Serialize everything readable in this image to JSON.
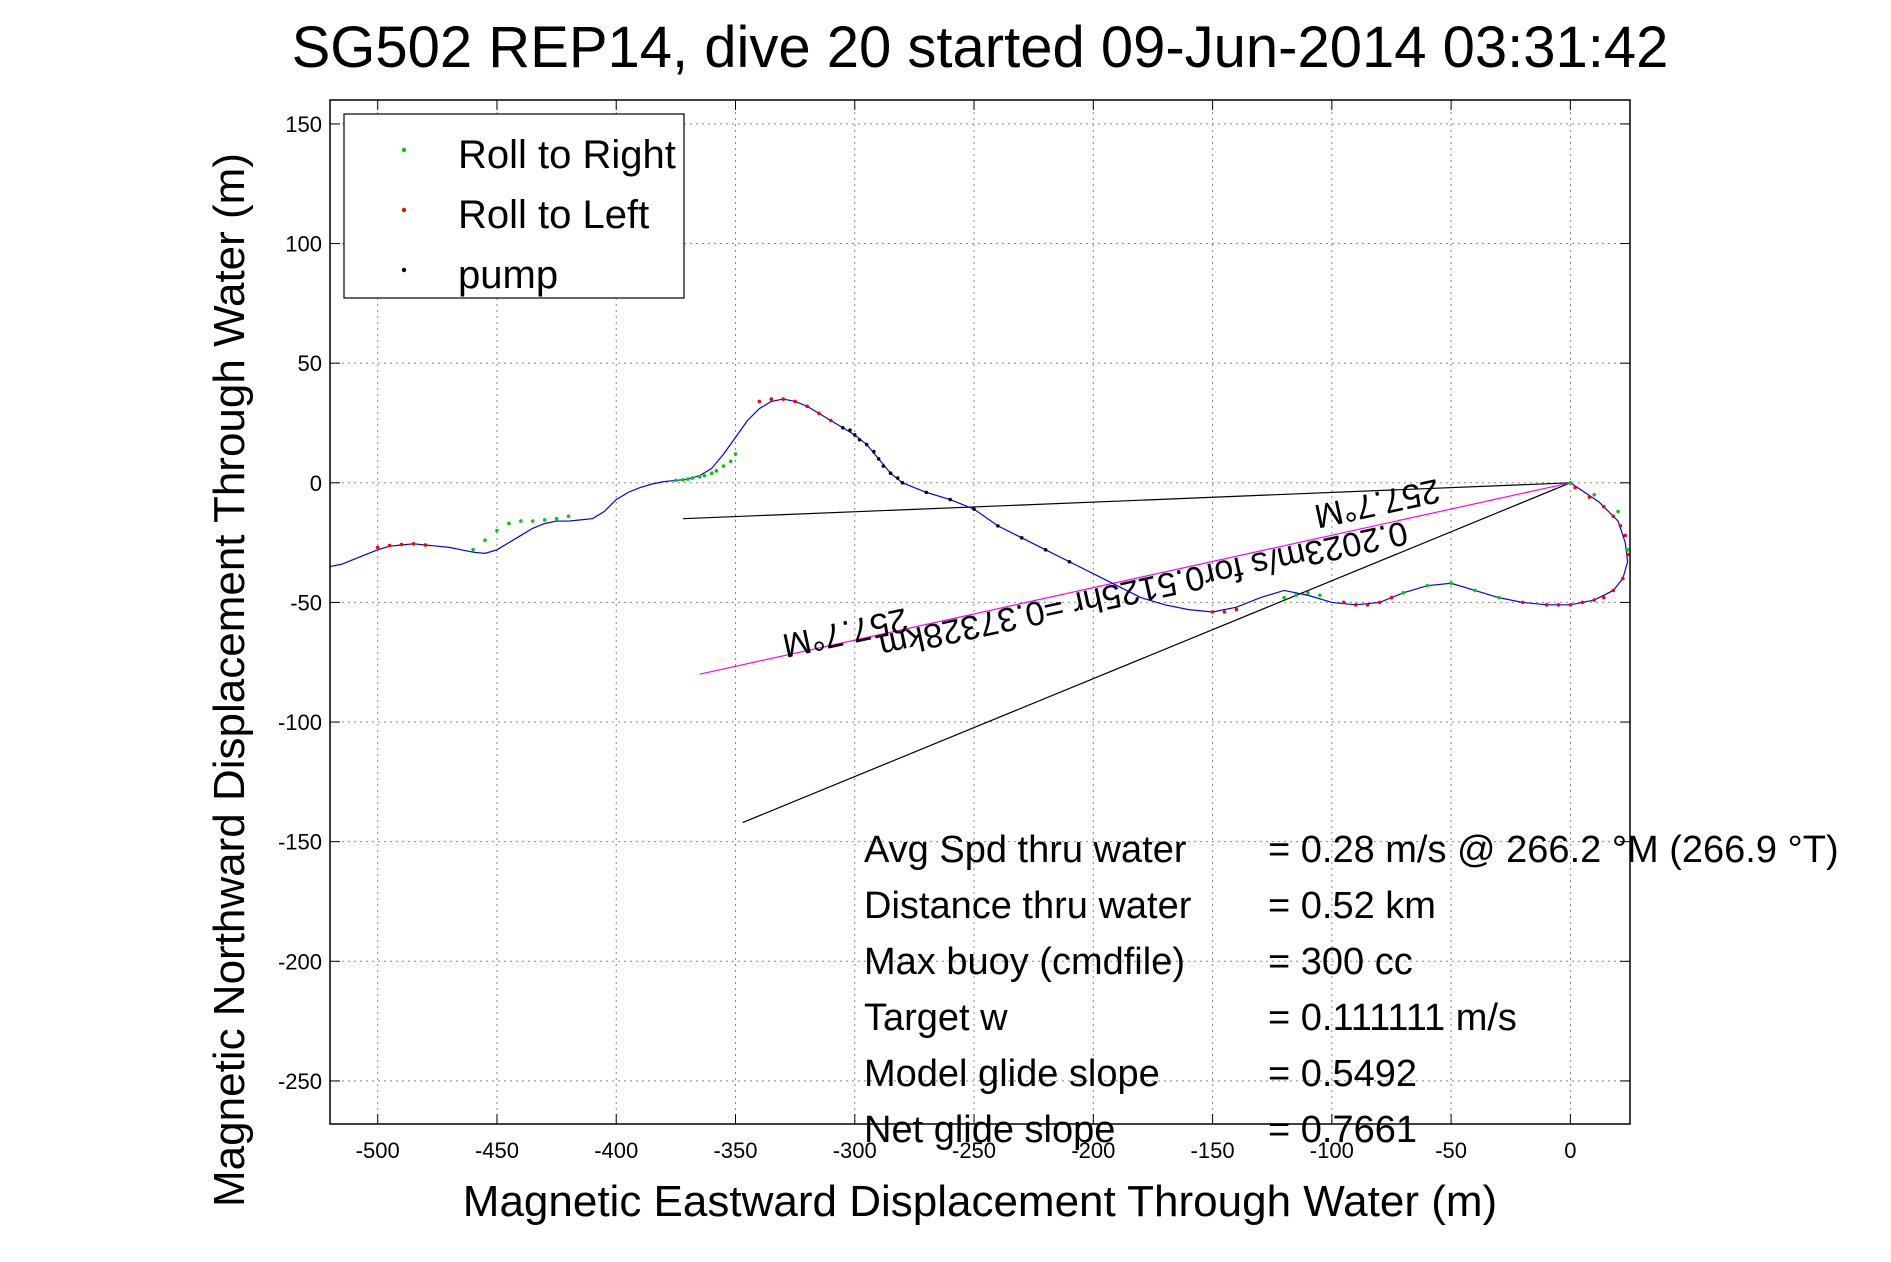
{
  "chart_data": {
    "type": "line",
    "title": "SG502 REP14, dive 20 started 09-Jun-2014 03:31:42",
    "xlabel": "Magnetic Eastward Displacement Through Water (m)",
    "ylabel": "Magnetic Northward Displacement Through Water (m)",
    "xlim": [
      -520,
      25
    ],
    "ylim": [
      -268,
      160
    ],
    "xticks": [
      -500,
      -450,
      -400,
      -350,
      -300,
      -250,
      -200,
      -150,
      -100,
      -50,
      0
    ],
    "yticks": [
      -250,
      -200,
      -150,
      -100,
      -50,
      0,
      50,
      100,
      150
    ],
    "grid": true,
    "legend_position": "top-left",
    "legend": [
      {
        "name": "Roll to Right",
        "color": "#00cc00"
      },
      {
        "name": "Roll to Left",
        "color": "#ff0000"
      },
      {
        "name": "pump",
        "color": "#000000"
      }
    ],
    "track": {
      "color": "#0000ff",
      "x": [
        0,
        12,
        20,
        23,
        24,
        22,
        18,
        10,
        0,
        -10,
        -20,
        -30,
        -40,
        -50,
        -60,
        -70,
        -80,
        -90,
        -100,
        -110,
        -120,
        -130,
        -140,
        -150,
        -160,
        -170,
        -180,
        -190,
        -200,
        -210,
        -220,
        -230,
        -240,
        -250,
        -260,
        -270,
        -280,
        -285,
        -290,
        -295,
        -300,
        -305,
        -310,
        -315,
        -320,
        -325,
        -330,
        -335,
        -340,
        -345,
        -350,
        -355,
        -360,
        -365,
        -370,
        -375,
        -380,
        -385,
        -390,
        -395,
        -400,
        -405,
        -410,
        -415,
        -420,
        -425,
        -430,
        -435,
        -440,
        -445,
        -450,
        -455,
        -460,
        -465,
        -470,
        -475,
        -480,
        -485,
        -490,
        -495,
        -500,
        -505,
        -510,
        -515,
        -520
      ],
      "y": [
        0,
        -8,
        -16,
        -25,
        -33,
        -40,
        -45,
        -49,
        -51,
        -51,
        -50,
        -48,
        -45,
        -42,
        -43,
        -46,
        -50,
        -51,
        -50,
        -47,
        -45,
        -48,
        -52,
        -54,
        -53,
        -51,
        -48,
        -43,
        -38,
        -33,
        -28,
        -23,
        -18,
        -11,
        -7,
        -4,
        0,
        4,
        10,
        16,
        20,
        23,
        26,
        29,
        32,
        34,
        35,
        34,
        31,
        26,
        19,
        12,
        6,
        3,
        1.5,
        1,
        0.5,
        -0.5,
        -2,
        -4,
        -7,
        -12,
        -15,
        -15.5,
        -16,
        -16,
        -17,
        -19,
        -22,
        -25,
        -28,
        -29.5,
        -29,
        -28,
        -27,
        -26.5,
        -26,
        -25.5,
        -26,
        -26.5,
        -28,
        -30,
        -32,
        -34,
        -35
      ]
    },
    "roll_right_x": [
      0,
      10,
      20,
      24,
      -30,
      -40,
      -50,
      -60,
      -70,
      -105,
      -110,
      -115,
      -120,
      -350,
      -352,
      -355,
      -358,
      -360,
      -363,
      -365,
      -368,
      -370,
      -372,
      -375,
      -420,
      -425,
      -430,
      -435,
      -440,
      -445,
      -450,
      -455,
      -460
    ],
    "roll_right_y": [
      0,
      -5,
      -12,
      -28,
      -48,
      -45,
      -42,
      -43,
      -46,
      -47,
      -46,
      -47,
      -48,
      12,
      9,
      7,
      5,
      4,
      3,
      2.5,
      2,
      1.5,
      1.2,
      1,
      -14,
      -15,
      -15.5,
      -16,
      -16,
      -17,
      -20,
      -24,
      -28
    ],
    "roll_left_x": [
      2,
      8,
      14,
      18,
      21,
      23,
      24,
      22,
      18,
      14,
      10,
      5,
      0,
      -5,
      -10,
      -20,
      -75,
      -80,
      -85,
      -90,
      -95,
      -140,
      -145,
      -150,
      -310,
      -315,
      -320,
      -325,
      -330,
      -335,
      -340,
      -480,
      -485,
      -490,
      -495,
      -500
    ],
    "roll_left_y": [
      -2,
      -6,
      -10,
      -14,
      -18,
      -22,
      -30,
      -40,
      -45,
      -48,
      -49,
      -50,
      -51,
      -51,
      -51,
      -50,
      -48,
      -50,
      -51,
      -51,
      -50,
      -53,
      -54,
      -54,
      26,
      29,
      32,
      34,
      35,
      35,
      34,
      -26,
      -25.5,
      -25.8,
      -26.2,
      -27
    ],
    "pump_x": [
      -280,
      -282,
      -285,
      -288,
      -290,
      -292,
      -295,
      -298,
      -300,
      -302,
      -305,
      -270,
      -260,
      -250,
      -240,
      -230,
      -220,
      -210
    ],
    "pump_y": [
      0,
      2,
      4,
      7,
      10,
      13,
      16,
      18,
      20,
      22,
      23,
      -4,
      -7,
      -11,
      -18,
      -23,
      -28,
      -33
    ],
    "heading_line": {
      "x": [
        0,
        -365
      ],
      "y": [
        0,
        -80
      ],
      "color": "#ff00ff"
    },
    "ref_lines": [
      {
        "x": [
          0,
          -372
        ],
        "y": [
          0,
          -15
        ],
        "color": "#000000"
      },
      {
        "x": [
          0,
          -347
        ],
        "y": [
          0,
          -142
        ],
        "color": "#000000"
      }
    ],
    "annotations": [
      {
        "text": "257.7°M",
        "x": -305,
        "y": -58,
        "rotation": 167.7
      },
      {
        "text": "0.2023m/s for0.5125hr =0.37328km",
        "x": -180,
        "y": -40,
        "rotation": 167.7
      },
      {
        "text": "257.7°M",
        "x": -82,
        "y": -4,
        "rotation": 167.7
      }
    ],
    "info": [
      {
        "label": "Avg Spd thru water",
        "value": "=  0.28 m/s @ 266.2 °M (266.9 °T)"
      },
      {
        "label": "Distance thru water",
        "value": "=  0.52 km"
      },
      {
        "label": "Max buoy (cmdfile)",
        "value": "= 300 cc"
      },
      {
        "label": "Target w",
        "value": "= 0.111111 m/s"
      },
      {
        "label": "Model glide slope",
        "value": "= 0.5492"
      },
      {
        "label": "Net glide slope",
        "value": "= 0.7661"
      }
    ]
  }
}
